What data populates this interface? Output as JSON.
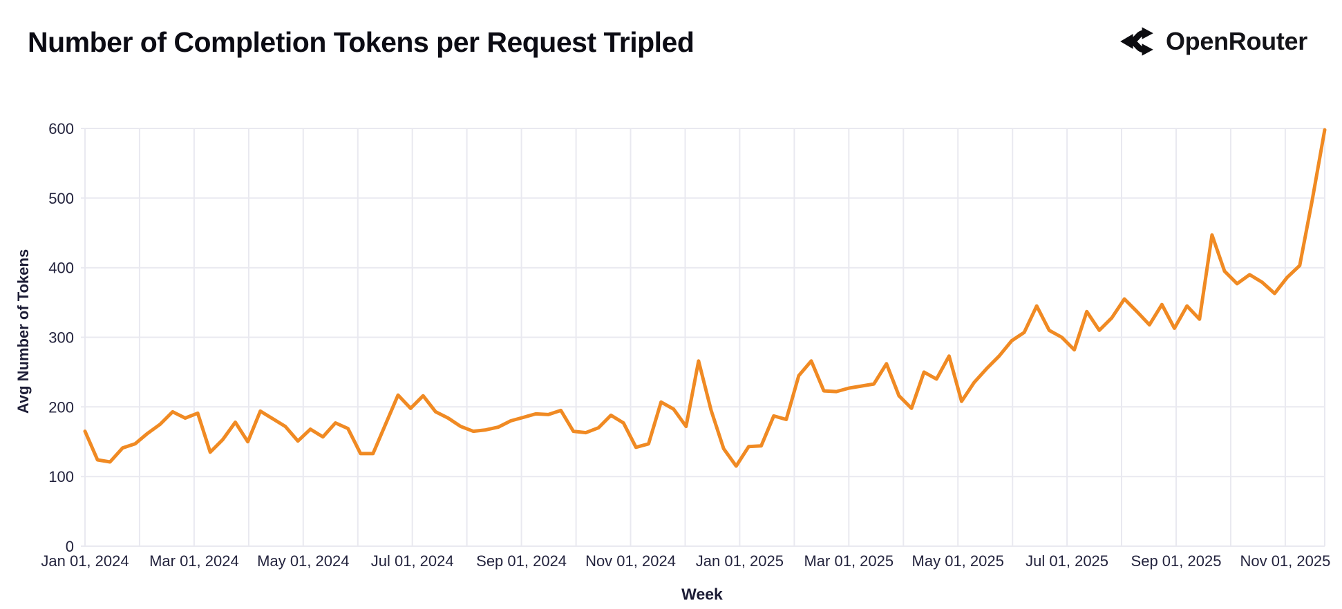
{
  "header": {
    "title": "Number of Completion Tokens per Request Tripled",
    "brand": "OpenRouter"
  },
  "chart_data": {
    "type": "line",
    "title": "Number of Completion Tokens per Request Tripled",
    "xlabel": "Week",
    "ylabel": "Avg Number of Tokens",
    "x_unit": "weekly",
    "x_tick_labels": [
      "Jan 01, 2024",
      "Mar 01, 2024",
      "May 01, 2024",
      "Jul 01, 2024",
      "Sep 01, 2024",
      "Nov 01, 2024",
      "Jan 01, 2025",
      "Mar 01, 2025",
      "May 01, 2025",
      "Jul 01, 2025",
      "Sep 01, 2025",
      "Nov 01, 2025"
    ],
    "y_ticks": [
      0,
      100,
      200,
      300,
      400,
      500,
      600
    ],
    "ylim": [
      0,
      600
    ],
    "grid": true,
    "legend": "none",
    "line_color": "#f08a23",
    "grid_color": "#e9e9f0",
    "values": [
      165,
      124,
      121,
      141,
      147,
      162,
      175,
      193,
      184,
      191,
      135,
      153,
      178,
      150,
      194,
      183,
      172,
      151,
      168,
      157,
      177,
      169,
      133,
      133,
      175,
      217,
      198,
      216,
      193,
      184,
      172,
      165,
      167,
      171,
      180,
      185,
      190,
      189,
      195,
      165,
      163,
      170,
      188,
      177,
      142,
      147,
      207,
      197,
      172,
      266,
      195,
      140,
      115,
      143,
      144,
      187,
      182,
      245,
      266,
      223,
      222,
      227,
      230,
      233,
      262,
      216,
      198,
      250,
      240,
      273,
      208,
      235,
      255,
      273,
      295,
      307,
      345,
      310,
      300,
      282,
      337,
      310,
      328,
      355,
      337,
      318,
      347,
      313,
      345,
      326,
      447,
      395,
      377,
      390,
      379,
      363,
      386,
      403,
      497,
      598
    ]
  }
}
